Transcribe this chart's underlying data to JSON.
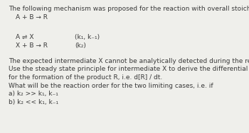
{
  "background_color": "#efefeb",
  "title_line": "The following mechanism was proposed for the reaction with overall stoichiometry",
  "overall_reaction": "A + B → R",
  "step1_left": "A ⇌ X",
  "step1_right": "(k₁, k₋₁)",
  "step2_left": "X + B → R",
  "step2_right": "(k₂)",
  "body_lines": [
    "The expected intermediate X cannot be analytically detected during the reaction.",
    "Use the steady state principle for intermediate X to derive the differential kinetic equation",
    "for the formation of the product R, i.e. d[R] / dt.",
    "What will be the reaction order for the two limiting cases, i.e. if"
  ],
  "case_a": "a) k₂ >> k₁, k₋₁",
  "case_b": "b) k₂ << k₁, k₋₁",
  "font_size_title": 6.5,
  "font_size_body": 6.5,
  "font_size_reaction": 6.5,
  "text_color": "#3a3a3a"
}
